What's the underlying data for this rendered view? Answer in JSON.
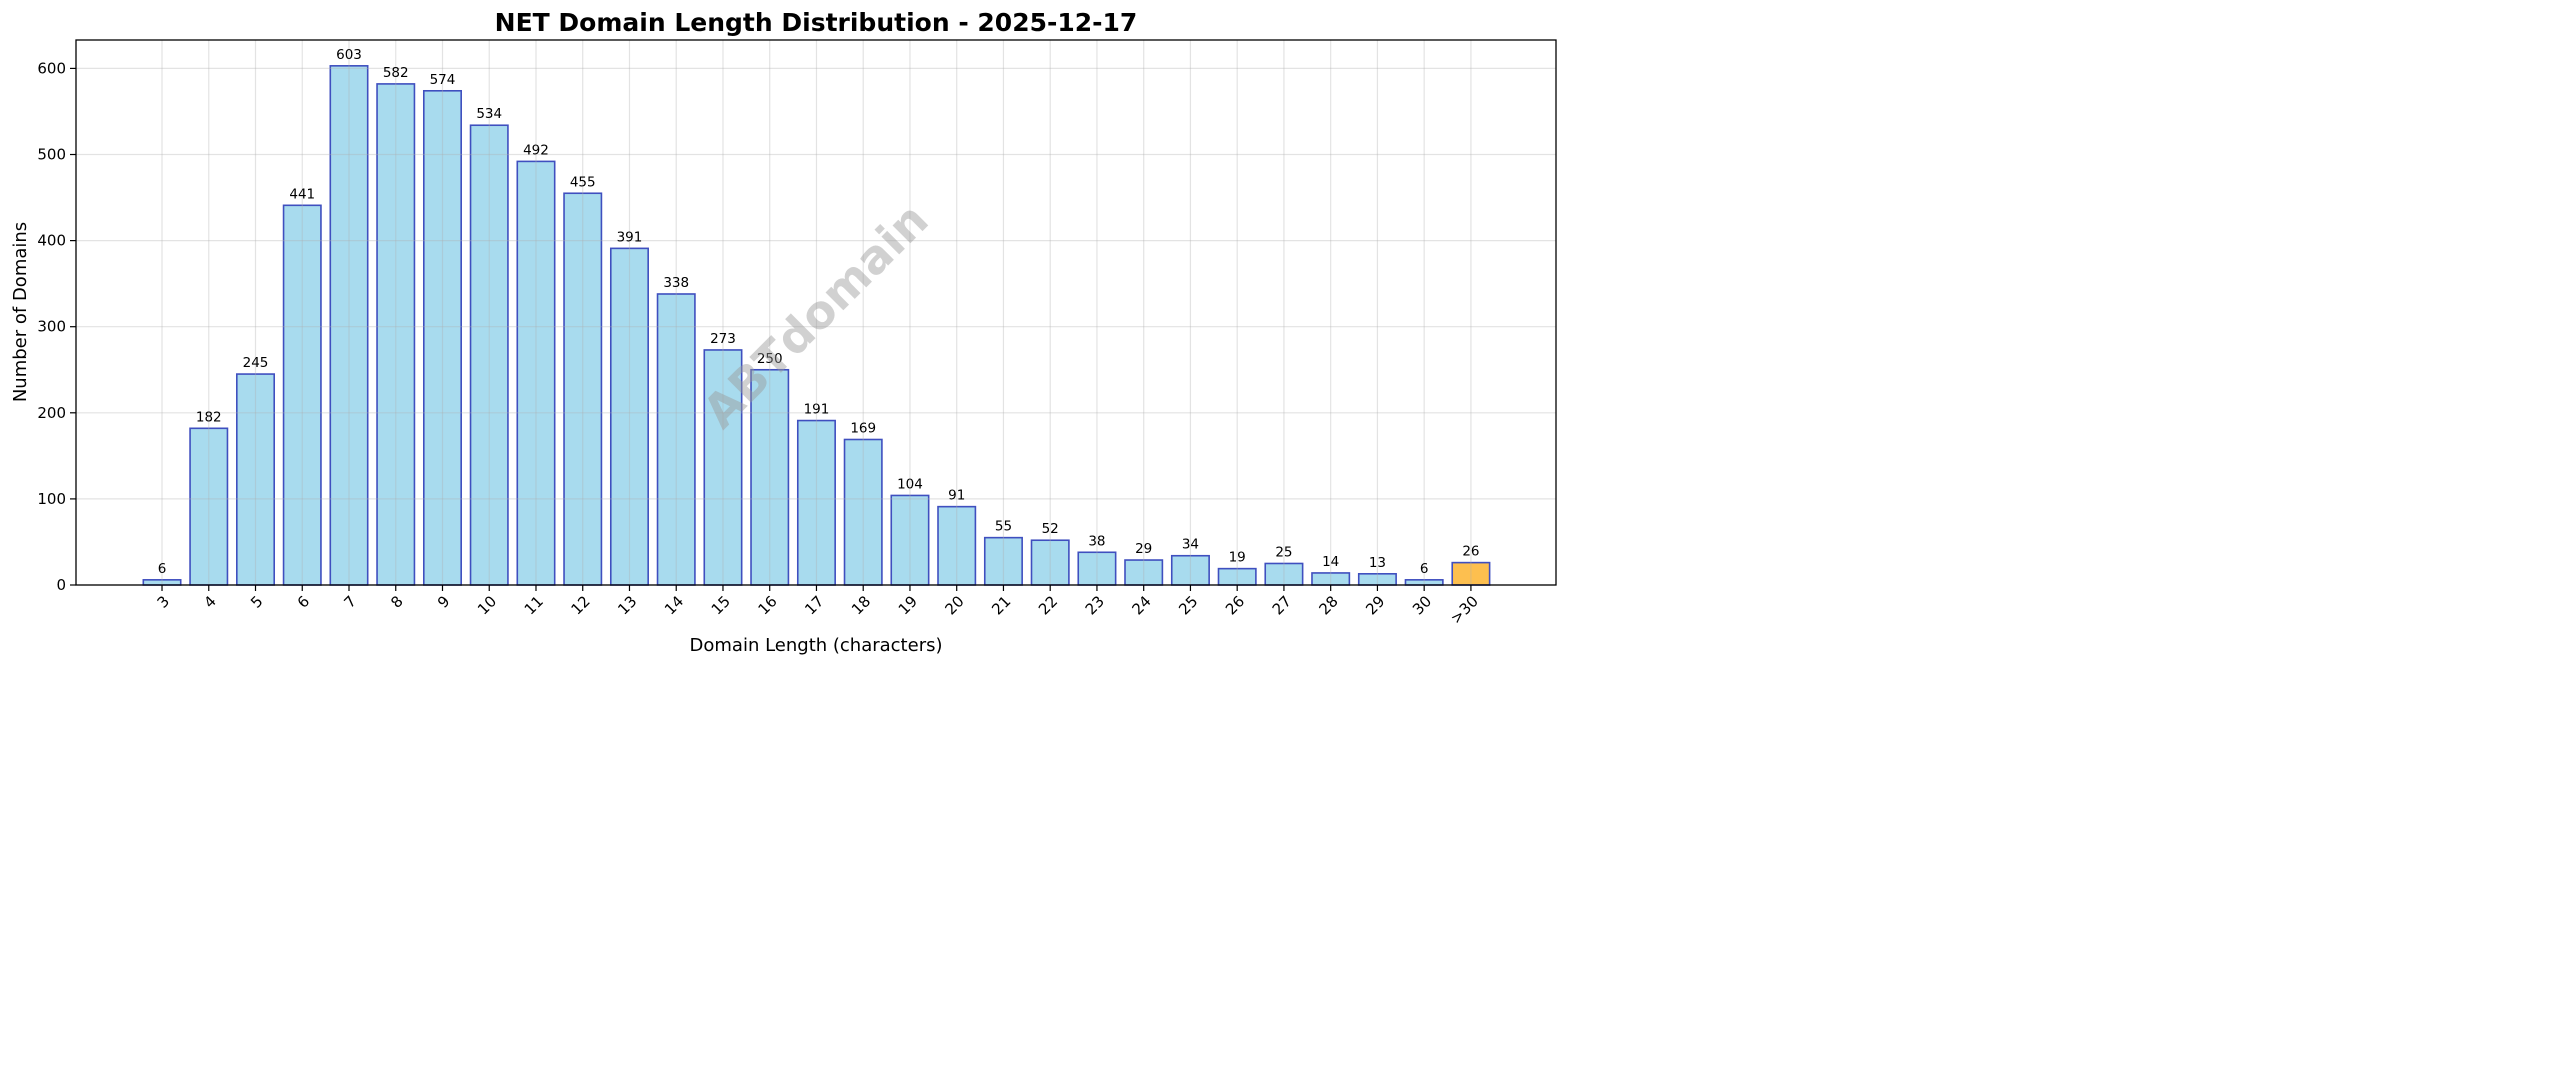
{
  "chart_data": {
    "type": "bar",
    "title": "NET Domain Length Distribution - 2025-12-17",
    "xlabel": "Domain Length (characters)",
    "ylabel": "Number of Domains",
    "categories": [
      "3",
      "4",
      "5",
      "6",
      "7",
      "8",
      "9",
      "10",
      "11",
      "12",
      "13",
      "14",
      "15",
      "16",
      "17",
      "18",
      "19",
      "20",
      "21",
      "22",
      "23",
      "24",
      "25",
      "26",
      "27",
      "28",
      "29",
      "30",
      ">30"
    ],
    "values": [
      6,
      182,
      245,
      441,
      603,
      582,
      574,
      534,
      492,
      455,
      391,
      338,
      273,
      250,
      191,
      169,
      104,
      91,
      55,
      52,
      38,
      29,
      34,
      19,
      25,
      14,
      13,
      6,
      26
    ],
    "ylim": [
      0,
      633
    ],
    "yticks": [
      0,
      100,
      200,
      300,
      400,
      500,
      600
    ],
    "grid": true,
    "data_labels": true,
    "colors": {
      "bar": "#a8dbee",
      "bar_edge": "#3f4fbf",
      "highlight": "#fdbf4f",
      "highlight_edge": "#3f4fbf"
    },
    "highlight_category": ">30",
    "watermark": "ABTdomain"
  }
}
